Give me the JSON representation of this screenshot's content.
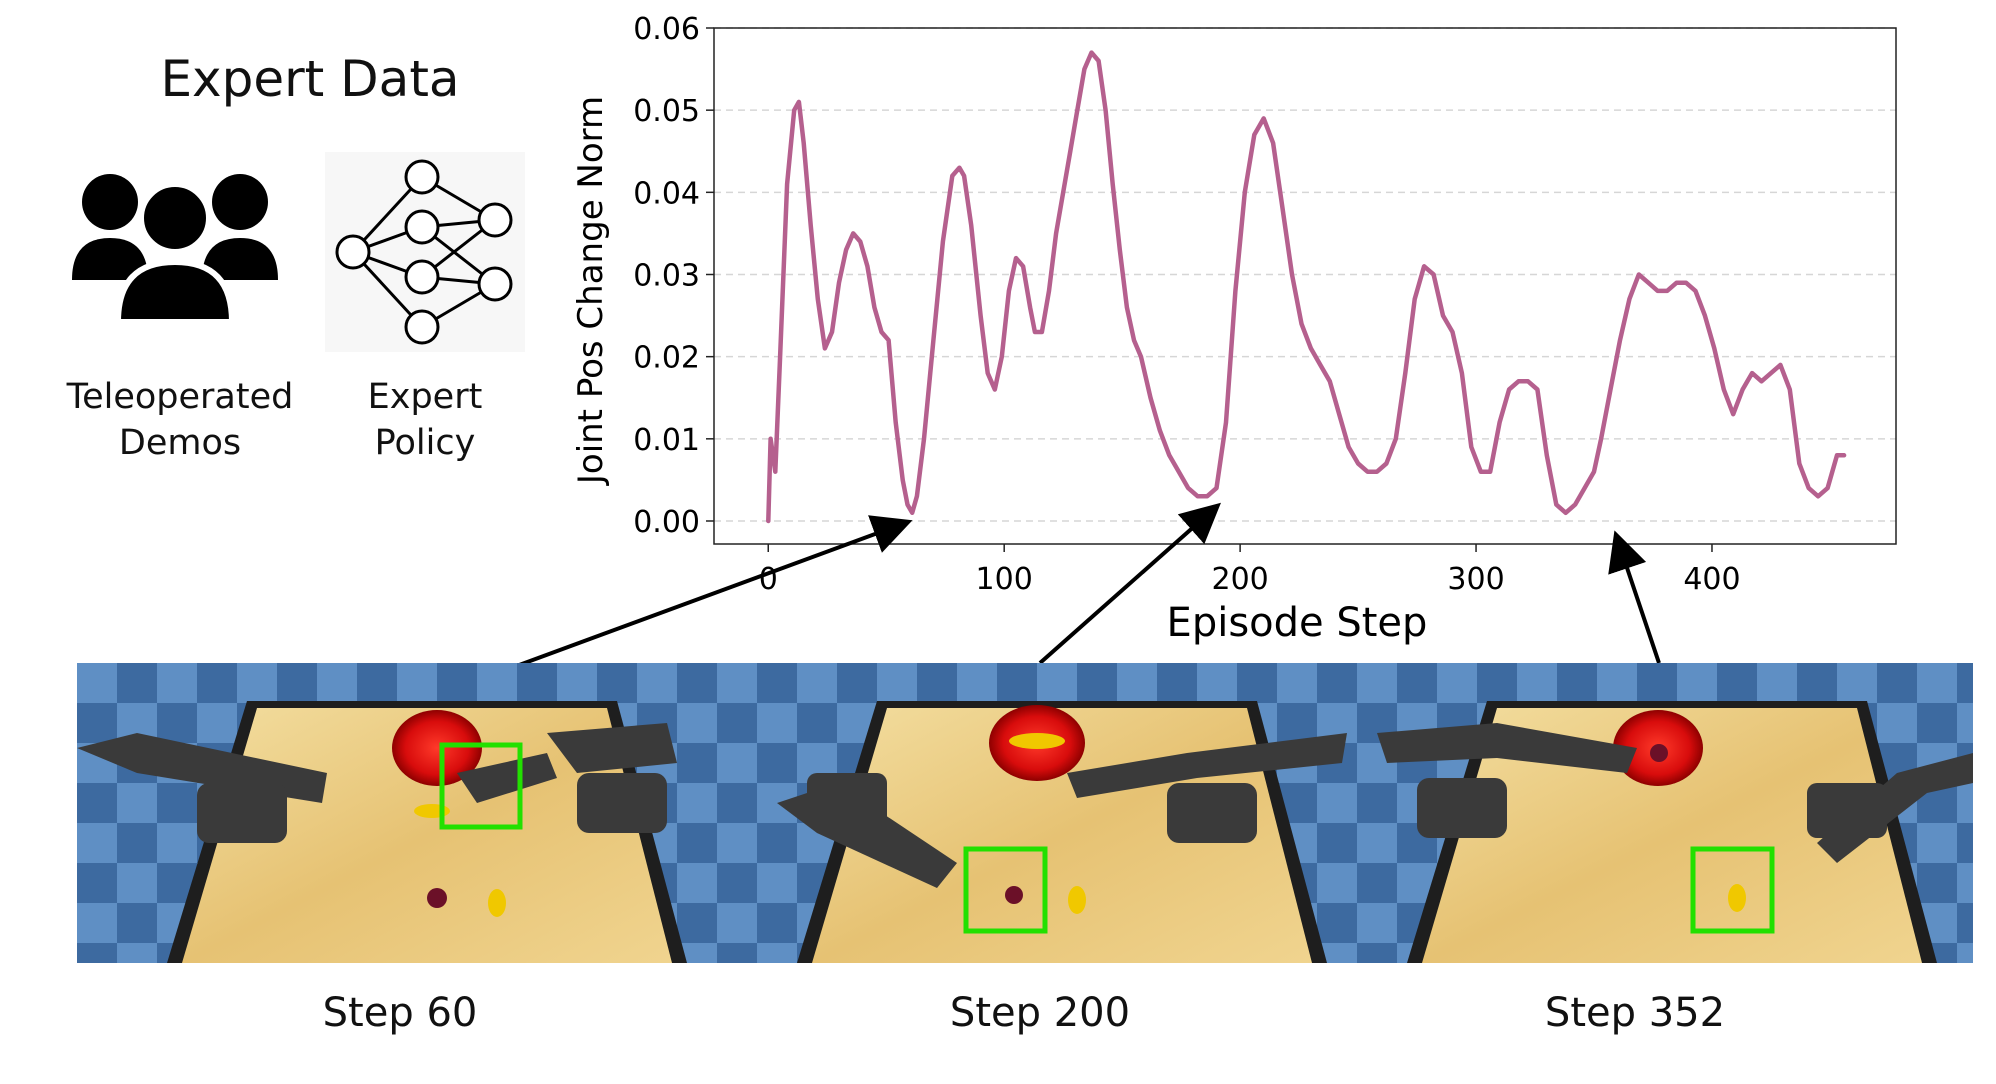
{
  "header": {
    "title": "Expert Data",
    "teleop_label_line1": "Teleoperated",
    "teleop_label_line2": "Demos",
    "policy_label_line1": "Expert",
    "policy_label_line2": "Policy",
    "teleop_icon": "people-group-icon",
    "policy_icon": "neural-network-icon"
  },
  "chart_data": {
    "type": "line",
    "xlabel": "Episode Step",
    "ylabel": "Joint Pos Change Norm",
    "xlim": [
      -23,
      478
    ],
    "ylim": [
      -0.0028,
      0.06
    ],
    "x_ticks": [
      0,
      100,
      200,
      300,
      400
    ],
    "x_tick_labels": [
      "0",
      "100",
      "200",
      "300",
      "400"
    ],
    "y_ticks": [
      0.0,
      0.01,
      0.02,
      0.03,
      0.04,
      0.05,
      0.06
    ],
    "y_tick_labels": [
      "0.00",
      "0.01",
      "0.02",
      "0.03",
      "0.04",
      "0.05",
      "0.06"
    ],
    "grid": "horizontal dashed",
    "line_color": "#b5608e",
    "series": [
      {
        "x": [
          0,
          1,
          3,
          5,
          8,
          11,
          13,
          15,
          18,
          21,
          24,
          27,
          30,
          33,
          36,
          39,
          42,
          45,
          48,
          51,
          54,
          57,
          59,
          61,
          63,
          66,
          70,
          74,
          78,
          81,
          83,
          86,
          90,
          93,
          96,
          99,
          102,
          105,
          108,
          111,
          113,
          116,
          119,
          122,
          125,
          128,
          131,
          134,
          137,
          140,
          143,
          146,
          149,
          152,
          155,
          158,
          162,
          166,
          170,
          174,
          178,
          182,
          186,
          190,
          194,
          198,
          202,
          206,
          210,
          214,
          218,
          222,
          226,
          230,
          234,
          238,
          242,
          246,
          250,
          254,
          258,
          262,
          266,
          270,
          274,
          278,
          282,
          286,
          290,
          294,
          298,
          302,
          306,
          310,
          314,
          318,
          322,
          326,
          330,
          334,
          338,
          342,
          346,
          350,
          353,
          357,
          361,
          365,
          369,
          373,
          377,
          381,
          385,
          389,
          393,
          397,
          401,
          405,
          409,
          413,
          417,
          421,
          425,
          429,
          433,
          437,
          441,
          445,
          449,
          453,
          456
        ],
        "y": [
          0.0,
          0.01,
          0.006,
          0.02,
          0.041,
          0.05,
          0.051,
          0.046,
          0.036,
          0.027,
          0.021,
          0.023,
          0.029,
          0.033,
          0.035,
          0.034,
          0.031,
          0.026,
          0.023,
          0.022,
          0.012,
          0.005,
          0.002,
          0.001,
          0.003,
          0.01,
          0.022,
          0.034,
          0.042,
          0.043,
          0.042,
          0.036,
          0.025,
          0.018,
          0.016,
          0.02,
          0.028,
          0.032,
          0.031,
          0.026,
          0.023,
          0.023,
          0.028,
          0.035,
          0.04,
          0.045,
          0.05,
          0.055,
          0.057,
          0.056,
          0.05,
          0.041,
          0.033,
          0.026,
          0.022,
          0.02,
          0.015,
          0.011,
          0.008,
          0.006,
          0.004,
          0.003,
          0.003,
          0.004,
          0.012,
          0.028,
          0.04,
          0.047,
          0.049,
          0.046,
          0.038,
          0.03,
          0.024,
          0.021,
          0.019,
          0.017,
          0.013,
          0.009,
          0.007,
          0.006,
          0.006,
          0.007,
          0.01,
          0.018,
          0.027,
          0.031,
          0.03,
          0.025,
          0.023,
          0.018,
          0.009,
          0.006,
          0.006,
          0.012,
          0.016,
          0.017,
          0.017,
          0.016,
          0.008,
          0.002,
          0.001,
          0.002,
          0.004,
          0.006,
          0.01,
          0.016,
          0.022,
          0.027,
          0.03,
          0.029,
          0.028,
          0.028,
          0.029,
          0.029,
          0.028,
          0.025,
          0.021,
          0.016,
          0.013,
          0.016,
          0.018,
          0.017,
          0.018,
          0.019,
          0.016,
          0.007,
          0.004,
          0.003,
          0.004,
          0.008,
          0.008
        ]
      }
    ]
  },
  "snapshots": {
    "frames": [
      {
        "label": "Step 60",
        "step": 60
      },
      {
        "label": "Step 200",
        "step": 200
      },
      {
        "label": "Step 352",
        "step": 352
      }
    ],
    "highlight_color": "#22e000"
  }
}
